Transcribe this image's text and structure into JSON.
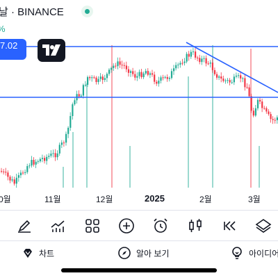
{
  "header": {
    "title": "날 · BINANCE",
    "change_pct": "%"
  },
  "price_label": "7.02",
  "xaxis": {
    "labels": [
      "0월",
      "11월",
      "12월",
      "2025",
      "2월",
      "3월"
    ]
  },
  "toolbar": {
    "items": [
      "draw-icon",
      "indicators-icon",
      "grid-icon",
      "add-icon",
      "alarm-icon",
      "candles-icon",
      "replay-icon",
      "layers-icon"
    ]
  },
  "bottom_nav": {
    "chart_label": "차트",
    "learn_label": "알아 보기",
    "ideas_label": "아이디어"
  },
  "colors": {
    "up": "#22ab94",
    "down": "#f23645",
    "trendline": "#2962ff",
    "accent": "#2962ff"
  }
}
